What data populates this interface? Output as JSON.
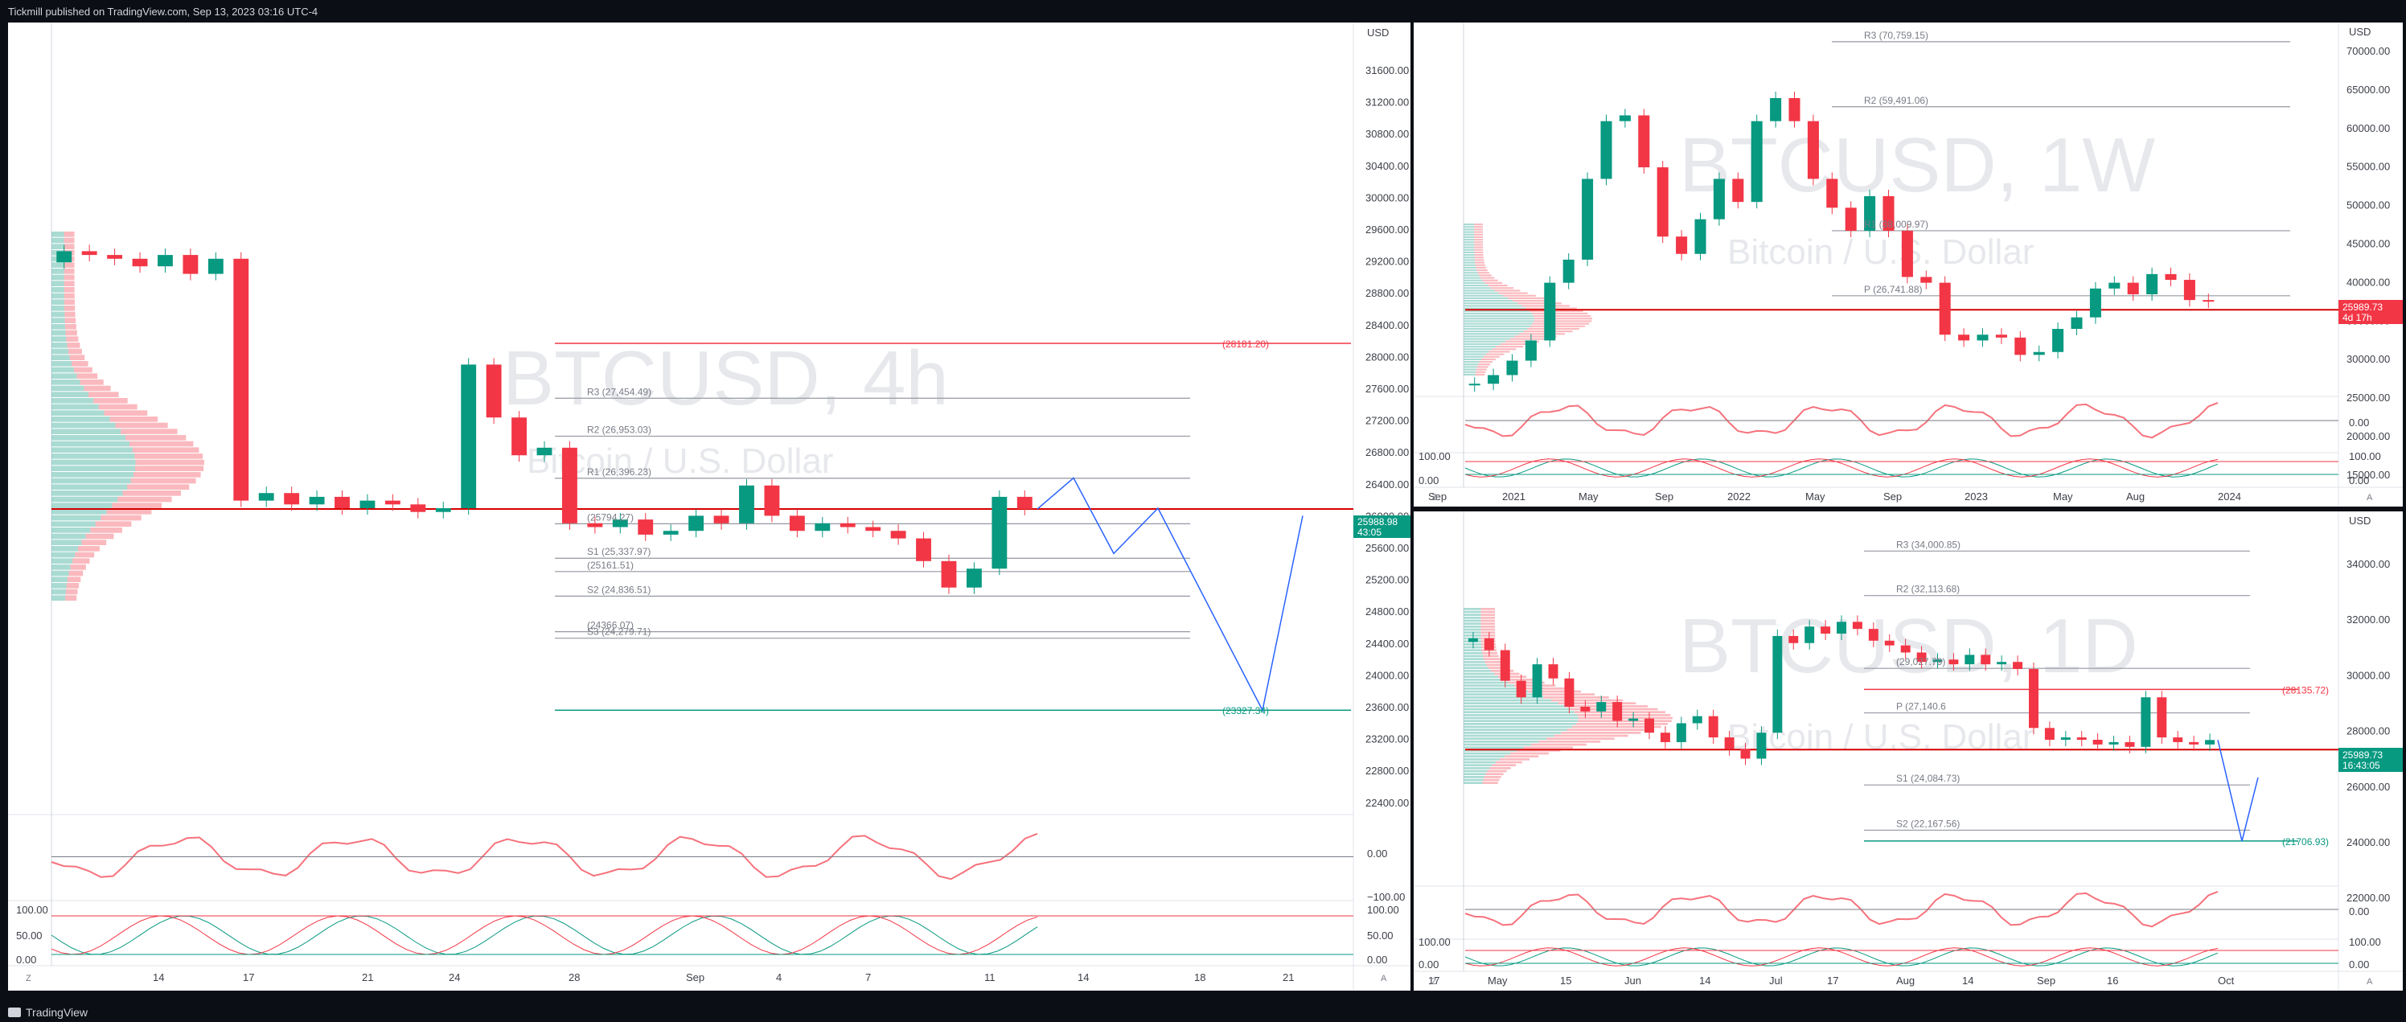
{
  "header": {
    "published": "Tickmill published on TradingView.com, Sep 13, 2023 03:16 UTC-4"
  },
  "footer": {
    "brand": "TradingView"
  },
  "colors": {
    "up": "#089981",
    "down": "#f23645",
    "pivot": "#9598a1",
    "volume_profile": "#b2b5be",
    "projection": "#2962ff"
  },
  "charts": [
    {
      "id": "left",
      "watermark": "BTCUSD, 4h",
      "watermark_sub": "Bitcoin / U.S. Dollar",
      "currency": "USD",
      "price_ticks": [
        "31600.00",
        "31200.00",
        "30800.00",
        "30400.00",
        "30000.00",
        "29600.00",
        "29200.00",
        "28800.00",
        "28400.00",
        "28000.00",
        "27600.00",
        "27200.00",
        "26800.00",
        "26400.00",
        "26000.00",
        "25600.00",
        "25200.00",
        "24800.00",
        "24400.00",
        "24000.00",
        "23600.00",
        "23200.00",
        "22800.00",
        "22400.00"
      ],
      "time_ticks": [
        "14",
        "17",
        "21",
        "24",
        "28",
        "Sep",
        "4",
        "7",
        "11",
        "14",
        "18",
        "21"
      ],
      "last_price": "25988.98",
      "countdown": "43:05",
      "pivots": [
        {
          "label": "R3 (27,454.49)",
          "value": 27454.49
        },
        {
          "label": "R2 (26,953.03)",
          "value": 26953.03
        },
        {
          "label": "R1 (26,396.23)",
          "value": 26396.23
        },
        {
          "label": "(25794.27)",
          "value": 25794.27
        },
        {
          "label": "S1 (25,337.97)",
          "value": 25337.97
        },
        {
          "label": "(25161.51)",
          "value": 25161.51
        },
        {
          "label": "S2 (24,836.51)",
          "value": 24836.51
        },
        {
          "label": "(24366.07)",
          "value": 24366.07
        },
        {
          "label": "S3 (24,279.71)",
          "value": 24279.71
        }
      ],
      "levels": [
        {
          "label": "(28181.20)",
          "value": 28181.2
        },
        {
          "label": "(23327.34)",
          "value": 23327.34
        }
      ],
      "rsi_ticks": [
        "0.00",
        "−100.00"
      ],
      "stoch_ticks": [
        "100.00",
        "50.00",
        "0.00"
      ],
      "corner_label": "Z",
      "scale_mode": "A"
    },
    {
      "id": "top-right",
      "watermark": "BTCUSD, 1W",
      "watermark_sub": "Bitcoin / U.S. Dollar",
      "currency": "USD",
      "price_ticks": [
        "70000.00",
        "65000.00",
        "60000.00",
        "55000.00",
        "50000.00",
        "45000.00",
        "40000.00",
        "35000.00",
        "30000.00",
        "25000.00",
        "20000.00",
        "15000.00"
      ],
      "time_ticks": [
        "Sep",
        "2021",
        "May",
        "Sep",
        "2022",
        "May",
        "Sep",
        "2023",
        "May",
        "Aug",
        "2024"
      ],
      "last_price": "25989.73",
      "countdown": "4d 17h",
      "pivots": [
        {
          "label": "R3 (70,759.15)",
          "value": 70759.15
        },
        {
          "label": "R2 (59,491.06)",
          "value": 59491.06
        },
        {
          "label": "R1 (38,009.97)",
          "value": 38009.97
        },
        {
          "label": "P (26,741.88)",
          "value": 26741.88
        }
      ],
      "rsi_ticks": [
        "0.00"
      ],
      "stoch_ticks": [
        "100.00",
        "0.00"
      ],
      "corner_label": "Z",
      "scale_mode": "A"
    },
    {
      "id": "bottom-right",
      "watermark": "BTCUSD, 1D",
      "watermark_sub": "Bitcoin / U.S. Dollar",
      "currency": "USD",
      "price_ticks": [
        "34000.00",
        "32000.00",
        "30000.00",
        "28000.00",
        "26000.00",
        "24000.00",
        "22000.00"
      ],
      "time_ticks": [
        "17",
        "May",
        "15",
        "Jun",
        "14",
        "Jul",
        "17",
        "Aug",
        "14",
        "Sep",
        "16",
        "Oct"
      ],
      "last_price": "25989.73",
      "countdown": "16:43:05",
      "pivots": [
        {
          "label": "R3 (34,000.85)",
          "value": 34000.85
        },
        {
          "label": "R2 (32,113.68)",
          "value": 32113.68
        },
        {
          "label": "(29,027.79)",
          "value": 29027.79
        },
        {
          "label": "P (27,140.6",
          "value": 27140.6
        },
        {
          "label": "S1 (24,084.73)",
          "value": 24084.73
        },
        {
          "label": "S2 (22,167.56)",
          "value": 22167.56
        }
      ],
      "levels": [
        {
          "label": "(28135.72)",
          "value": 28135.72
        },
        {
          "label": "(21706.93)",
          "value": 21706.93
        }
      ],
      "rsi_ticks": [
        "0.00"
      ],
      "stoch_ticks": [
        "100.00",
        "0.00"
      ],
      "corner_label": "Z",
      "scale_mode": "A"
    }
  ],
  "chart_data": [
    {
      "type": "line",
      "series": [
        {
          "values_note": "",
          "approx_close": [
            29400,
            29350,
            29300,
            29200,
            29350,
            29100,
            29300,
            26100,
            26200,
            26050,
            26150,
            26000,
            26100,
            26050,
            25950,
            26000,
            27900,
            27200,
            26700,
            26800,
            25800,
            25750,
            25850,
            25650,
            25700,
            25900,
            25800,
            26300,
            25900,
            25700,
            25800,
            25750,
            25700,
            25600,
            25300,
            24950,
            25200,
            26150,
            25988.98
          ]
        }
      ],
      "title": "BTCUSD, 4h",
      "ylim": [
        22000,
        32000
      ]
    },
    {
      "type": "line",
      "series": [
        {
          "approx_close": [
            11500,
            13000,
            15500,
            19000,
            29000,
            33000,
            47000,
            57000,
            58000,
            49000,
            37000,
            34000,
            40000,
            47000,
            43000,
            57000,
            61000,
            57000,
            47000,
            42000,
            38000,
            44000,
            38000,
            30000,
            29000,
            20000,
            19000,
            20000,
            19500,
            16500,
            17000,
            21000,
            23000,
            28000,
            29000,
            27000,
            30500,
            29500,
            26000,
            25989.73
          ]
        }
      ],
      "title": "BTCUSD, 1W",
      "ylim": [
        10000,
        72000
      ]
    },
    {
      "type": "line",
      "series": [
        {
          "approx_close": [
            30300,
            29800,
            28500,
            27800,
            29200,
            28600,
            27400,
            27200,
            27600,
            26800,
            26900,
            26300,
            25900,
            26700,
            27000,
            26100,
            25600,
            25200,
            26300,
            30400,
            30100,
            30800,
            30500,
            31000,
            30700,
            30200,
            30000,
            29700,
            29300,
            29400,
            29200,
            29600,
            29200,
            29300,
            29000,
            26500,
            26000,
            26100,
            26000,
            25800,
            25900,
            25700,
            27800,
            26100,
            25900,
            25800,
            25989.73
          ]
        }
      ],
      "title": "BTCUSD, 1D",
      "ylim": [
        20000,
        35000
      ]
    }
  ]
}
